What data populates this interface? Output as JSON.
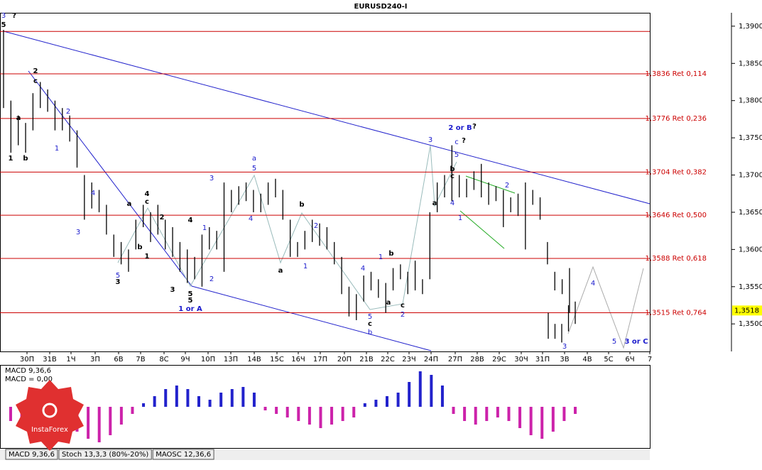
{
  "chart_data": {
    "type": "ohlc",
    "title": "EURUSD240-I",
    "categories": [
      "30П",
      "31В",
      "1Ч",
      "3П",
      "6В",
      "7В",
      "8С",
      "9Ч",
      "10П",
      "13П",
      "14В",
      "15С",
      "16Ч",
      "17П",
      "20П",
      "21В",
      "22С",
      "23Ч",
      "24П",
      "27П",
      "28В",
      "29С",
      "30Ч",
      "31П",
      "3В",
      "4В",
      "5С",
      "6Ч",
      "7"
    ],
    "high": [
      1.3895,
      1.38,
      1.378,
      1.377,
      1.381,
      1.3825,
      1.3815,
      1.38,
      1.379,
      1.378,
      1.376,
      1.37,
      1.369,
      1.368,
      1.366,
      1.362,
      1.361,
      1.36,
      1.364,
      1.366,
      1.365,
      1.366,
      1.364,
      1.363,
      1.361,
      1.36,
      1.359,
      1.362,
      1.363,
      1.3625,
      1.369,
      1.368,
      1.3685,
      1.369,
      1.368,
      1.3675,
      1.369,
      1.3695,
      1.368,
      1.364,
      1.361,
      1.3625,
      1.364,
      1.3635,
      1.363,
      1.361,
      1.359,
      1.355,
      1.354,
      1.3565,
      1.357,
      1.356,
      1.3555,
      1.3575,
      1.358,
      1.357,
      1.3585,
      1.356,
      1.365,
      1.369,
      1.37,
      1.374,
      1.37,
      1.3695,
      1.3705,
      1.3715,
      1.369,
      1.3685,
      1.368,
      1.367,
      1.3675,
      1.369,
      1.368,
      1.367,
      1.361,
      1.357,
      1.356,
      1.3575
    ],
    "low": [
      1.379,
      1.373,
      1.374,
      1.373,
      1.376,
      1.379,
      1.3785,
      1.376,
      1.376,
      1.3745,
      1.371,
      1.364,
      1.3655,
      1.365,
      1.362,
      1.359,
      1.358,
      1.357,
      1.36,
      1.363,
      1.361,
      1.362,
      1.36,
      1.359,
      1.357,
      1.3555,
      1.356,
      1.355,
      1.36,
      1.36,
      1.357,
      1.365,
      1.366,
      1.3665,
      1.365,
      1.365,
      1.366,
      1.367,
      1.364,
      1.359,
      1.359,
      1.36,
      1.361,
      1.3605,
      1.36,
      1.358,
      1.354,
      1.351,
      1.3505,
      1.353,
      1.3545,
      1.3535,
      1.3515,
      1.3545,
      1.356,
      1.354,
      1.3545,
      1.354,
      1.356,
      1.365,
      1.367,
      1.3665,
      1.367,
      1.367,
      1.368,
      1.367,
      1.366,
      1.3665,
      1.363,
      1.365,
      1.3645,
      1.36,
      1.366,
      1.364,
      1.358,
      1.3545,
      1.354,
      1.3515
    ],
    "high2": [
      1.3515,
      1.35,
      1.35,
      1.3525,
      1.353
    ],
    "low2": [
      1.348,
      1.348,
      1.3475,
      1.349,
      1.35
    ],
    "ylim": [
      1.3463,
      1.3918
    ],
    "yticks": [
      {
        "value": 1.39,
        "label": "1,3900"
      },
      {
        "value": 1.385,
        "label": "1,3850"
      },
      {
        "value": 1.38,
        "label": "1,3800"
      },
      {
        "value": 1.375,
        "label": "1,3750"
      },
      {
        "value": 1.37,
        "label": "1,3700"
      },
      {
        "value": 1.365,
        "label": "1,3650"
      },
      {
        "value": 1.36,
        "label": "1,3600"
      },
      {
        "value": 1.355,
        "label": "1,3550"
      },
      {
        "value": 1.35,
        "label": "1,3500"
      }
    ],
    "levels": [
      {
        "value": 1.3893
      },
      {
        "value": 1.3836,
        "label": "1,3836 Ret 0,114"
      },
      {
        "value": 1.3776,
        "label": "1,3776 Ret 0,236"
      },
      {
        "value": 1.3704,
        "label": "1,3704 Ret 0,382"
      },
      {
        "value": 1.3646,
        "label": "1,3646 Ret 0,500"
      },
      {
        "value": 1.3588,
        "label": "1,3588 Ret 0,618"
      },
      {
        "value": 1.3515,
        "label": "1,3515 Ret 0,764"
      }
    ],
    "last_price": {
      "value": 1.3518,
      "label": "1,3518"
    },
    "annotations": [
      "3",
      "?",
      "5",
      "2",
      "c",
      "a",
      "1",
      "b",
      "2",
      "1",
      "4",
      "3",
      "5",
      "3",
      "a",
      "4",
      "c",
      "2",
      "b",
      "1",
      "4",
      "1",
      "3",
      "5",
      "5",
      "1 or A",
      "3",
      "2",
      "a",
      "5",
      "4",
      "b",
      "2",
      "a",
      "1",
      "4",
      "1",
      "b",
      "a",
      "c",
      "2",
      "5",
      "c",
      "b",
      "3",
      "2 or B",
      "?",
      "c",
      "?",
      "5",
      "b",
      "c",
      "a",
      "4",
      "1",
      "2",
      "3",
      "4",
      "5",
      "3 or C"
    ],
    "indicator": {
      "label": "MACD 9,36,6",
      "value_text": "MACD = 0,00",
      "ylim": [
        -58,
        58
      ],
      "values": [
        -20,
        -30,
        -35,
        -35,
        -30,
        -25,
        -35,
        -45,
        -50,
        -40,
        -25,
        -10,
        5,
        15,
        25,
        30,
        25,
        15,
        10,
        20,
        25,
        28,
        20,
        -5,
        -10,
        -15,
        -20,
        -25,
        -30,
        -25,
        -20,
        -15,
        5,
        10,
        15,
        20,
        35,
        50,
        45,
        30,
        -10,
        -20,
        -25,
        -20,
        -15,
        -20,
        -30,
        -40,
        -45,
        -35,
        -20,
        -10
      ]
    },
    "tabs": [
      "MACD 9,36,6",
      "Stoch 13,3,3 (80%-20%)",
      "MAOSC 12,36,6"
    ],
    "logo": "InstaForex"
  }
}
